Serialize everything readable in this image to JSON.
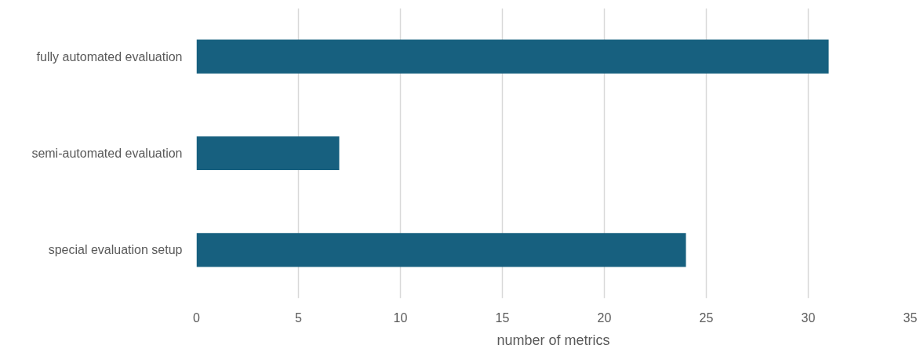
{
  "chart_data": {
    "type": "bar",
    "orientation": "horizontal",
    "xlabel": "number of metrics",
    "categories": [
      "fully automated evaluation",
      "semi-automated evaluation",
      "special evaluation setup"
    ],
    "values": [
      31,
      7,
      24
    ],
    "color": "#17607f",
    "xlim": [
      0,
      35
    ],
    "xticks": [
      0,
      5,
      10,
      15,
      20,
      25,
      30,
      35
    ],
    "grid": "x"
  }
}
